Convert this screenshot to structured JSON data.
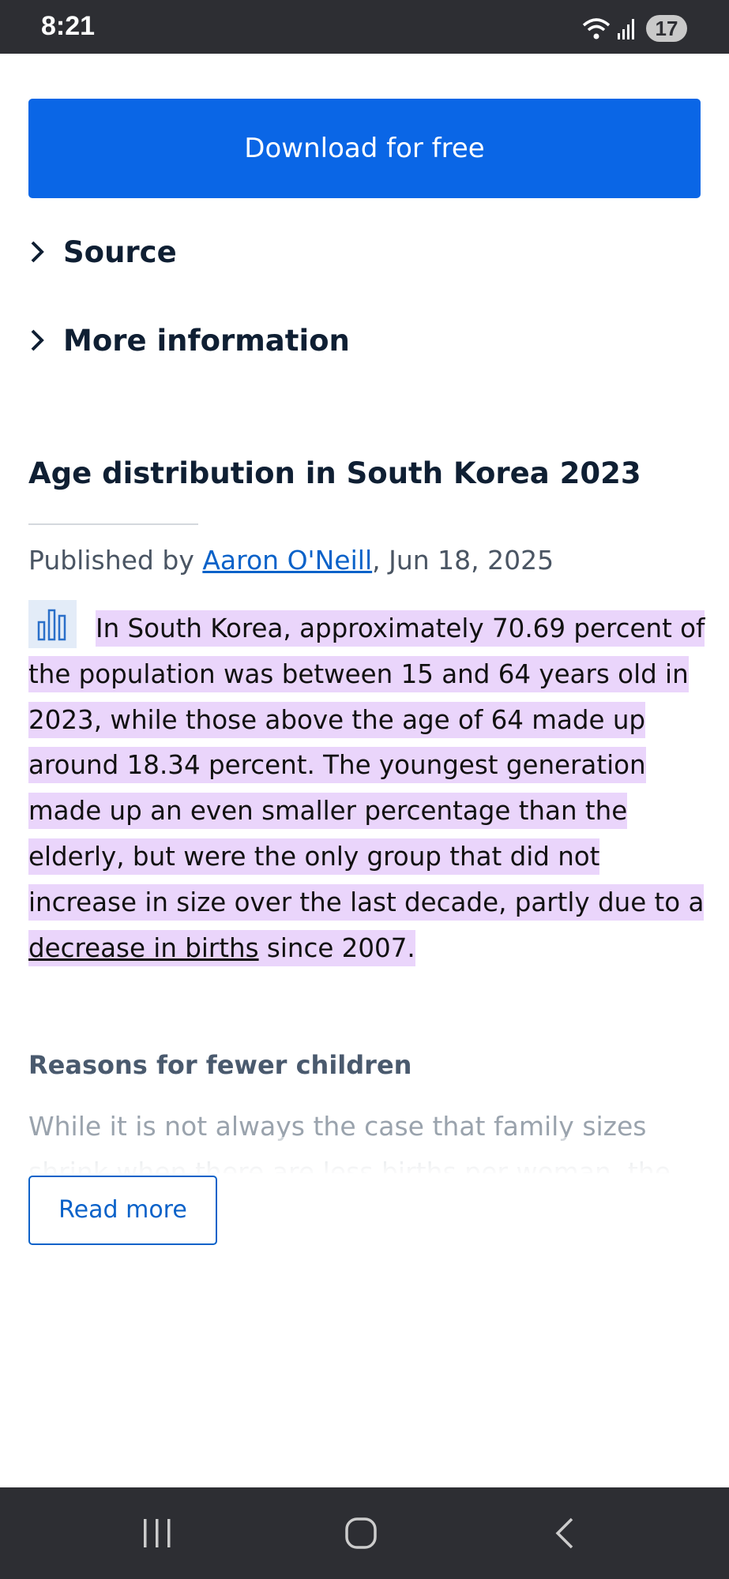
{
  "status": {
    "time": "8:21",
    "battery": "17"
  },
  "download_button": "Download for free",
  "sections": [
    "Source",
    "More information"
  ],
  "article": {
    "title": "Age distribution in South Korea 2023",
    "byline": {
      "prefix": "Published by ",
      "author": "Aaron O'Neill",
      "date": ", Jun 18, 2025"
    },
    "paragraph": {
      "before": "In South Korea, approximately 70.69 percent of the population was between 15 and 64 years old in 2023, while those above the age of 64 made up around 18.34 percent. The youngest generation made up an even smaller percentage than the elderly, but were the only group that did not increase in size over the last decade, partly due to a ",
      "link": "decrease in births",
      "after": " since 2007."
    },
    "subheading": "Reasons for fewer children",
    "teaser": "While it is not always the case that family sizes shrink when there are less births per woman, the",
    "read_more": "Read more"
  }
}
